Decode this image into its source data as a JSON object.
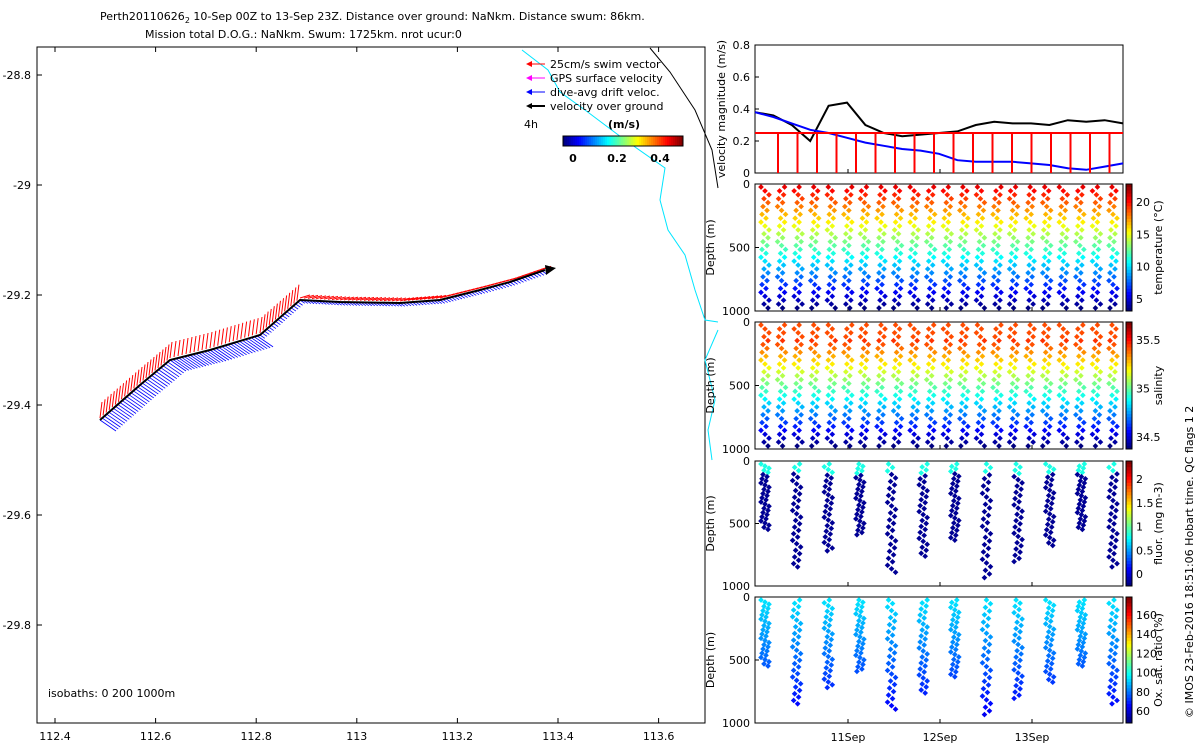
{
  "header": {
    "line1": "Perth20110626",
    "line1_sub": "2",
    "line1_rest": " 10-Sep 00Z to 13-Sep 23Z. Distance over ground: NaNkm. Distance swum: 86km.",
    "line2": "Mission total D.O.G.: NaNkm. Swum: 1725km. nrot ucur:0"
  },
  "map": {
    "xticks": [
      "112.4",
      "112.6",
      "112.8",
      "113",
      "113.2",
      "113.4",
      "113.6"
    ],
    "yticks": [
      "-28.8",
      "-29",
      "-29.2",
      "-29.4",
      "-29.6",
      "-29.8"
    ],
    "isobaths_label": "isobaths: 0   200  1000m",
    "legend": [
      {
        "label": "25cm/s swim vector",
        "color": "#ff0000"
      },
      {
        "label": "GPS surface velocity",
        "color": "#ff00ff"
      },
      {
        "label": "dive-avg drift veloc.",
        "color": "#0000ff"
      },
      {
        "label": "velocity over ground",
        "color": "#000000"
      }
    ],
    "legend_time": "4h",
    "colorbar_title": "(m/s)",
    "colorbar_ticks": [
      "0",
      "0.2",
      "0.4"
    ]
  },
  "chart_data": [
    {
      "type": "line",
      "title": "",
      "ylabel": "velocity magnitude (m/s)",
      "ylim": [
        0,
        0.8
      ],
      "yticks": [
        "0",
        "0.2",
        "0.4",
        "0.6",
        "0.8"
      ],
      "series": [
        {
          "name": "velocity over ground",
          "color": "#000000",
          "x": [
            0,
            0.05,
            0.1,
            0.15,
            0.2,
            0.25,
            0.3,
            0.35,
            0.4,
            0.45,
            0.5,
            0.55,
            0.6,
            0.65,
            0.7,
            0.75,
            0.8,
            0.85,
            0.9,
            0.95,
            1.0
          ],
          "values": [
            0.38,
            0.36,
            0.3,
            0.2,
            0.42,
            0.44,
            0.3,
            0.25,
            0.23,
            0.24,
            0.25,
            0.26,
            0.3,
            0.32,
            0.31,
            0.31,
            0.3,
            0.33,
            0.32,
            0.33,
            0.31
          ]
        },
        {
          "name": "dive-avg drift",
          "color": "#0000ff",
          "x": [
            0,
            0.05,
            0.1,
            0.15,
            0.2,
            0.25,
            0.3,
            0.35,
            0.4,
            0.45,
            0.5,
            0.55,
            0.6,
            0.65,
            0.7,
            0.75,
            0.8,
            0.85,
            0.9,
            0.95,
            1.0
          ],
          "values": [
            0.38,
            0.35,
            0.31,
            0.27,
            0.25,
            0.22,
            0.19,
            0.17,
            0.15,
            0.14,
            0.12,
            0.08,
            0.07,
            0.07,
            0.07,
            0.06,
            0.05,
            0.03,
            0.02,
            0.04,
            0.06
          ]
        },
        {
          "name": "swim",
          "color": "#ff0000",
          "x": [
            0,
            1
          ],
          "values": [
            0.25,
            0.25
          ]
        }
      ]
    },
    {
      "type": "scatter",
      "ylabel": "Depth (m)",
      "yticks": [
        "0",
        "500",
        "1000"
      ],
      "cbar_label": "temperature (°C)",
      "cbar_ticks": [
        "20",
        "15",
        "10",
        "5"
      ],
      "profiles": 22
    },
    {
      "type": "scatter",
      "ylabel": "Depth (m)",
      "yticks": [
        "0",
        "500",
        "1000"
      ],
      "cbar_label": "salinity",
      "cbar_ticks": [
        "35.5",
        "35",
        "34.5"
      ],
      "profiles": 22
    },
    {
      "type": "scatter",
      "ylabel": "Depth (m)",
      "yticks": [
        "0",
        "500",
        "1000"
      ],
      "cbar_label": "fluor. (mg m-3)",
      "cbar_ticks": [
        "2",
        "1.5",
        "1",
        "0.5",
        "0"
      ],
      "profiles": 12
    },
    {
      "type": "scatter",
      "ylabel": "Depth (m)",
      "yticks": [
        "0",
        "500",
        "1000"
      ],
      "cbar_label": "Ox. sat. ratio (%)",
      "cbar_ticks": [
        "160",
        "140",
        "120",
        "100",
        "80",
        "60"
      ],
      "profiles": 12,
      "xticks": [
        "11Sep",
        "12Sep",
        "13Sep"
      ]
    }
  ],
  "credit": "© IMOS 23-Feb-2016 18:51:06 Hobart time. QC flags 1  2"
}
